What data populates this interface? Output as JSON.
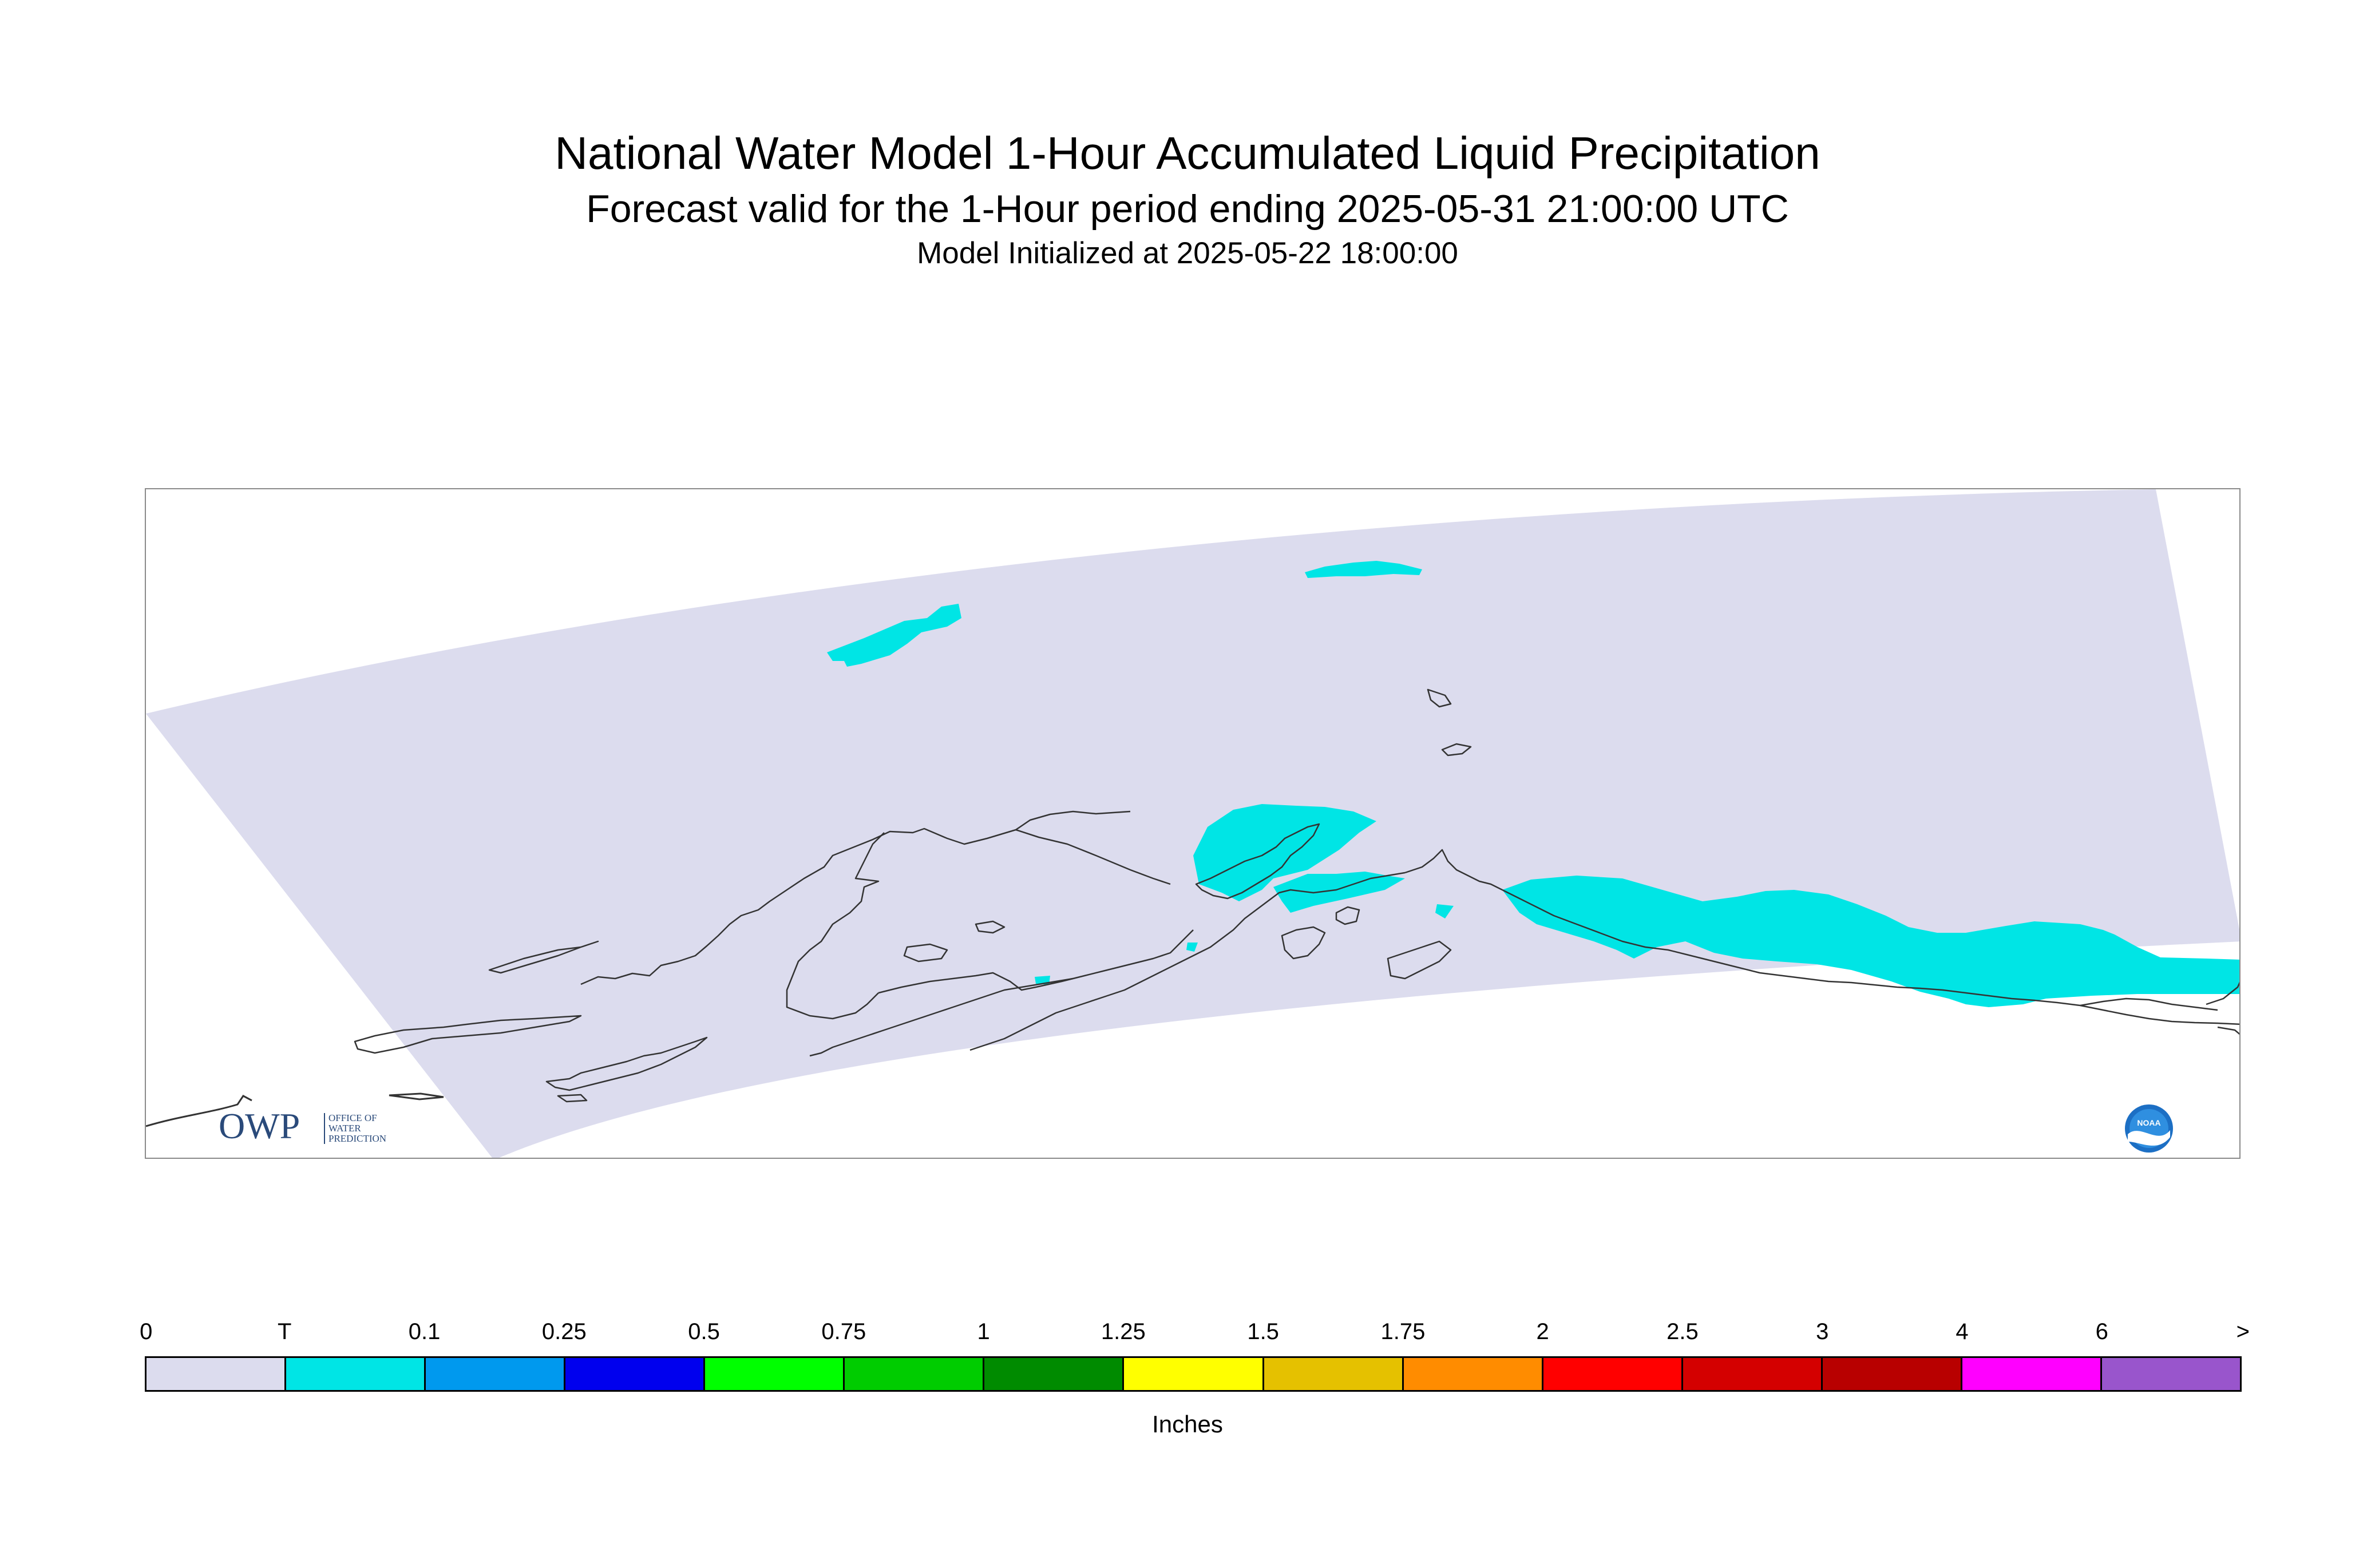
{
  "header": {
    "title": "National Water Model 1-Hour Accumulated Liquid Precipitation",
    "subtitle": "Forecast valid for the 1-Hour period ending 2025-05-31 21:00:00 UTC",
    "init": "Model Initialized at 2025-05-22 18:00:00"
  },
  "map": {
    "domain_fill": "#dcdcee",
    "coastline_color": "#333333",
    "precip_color": "#00e5e5",
    "region": "Alaska"
  },
  "logos": {
    "owp_mark": "OWP",
    "owp_line1": "OFFICE OF",
    "owp_line2": "WATER",
    "owp_line3": "PREDICTION",
    "noaa_mark": "NOAA"
  },
  "legend": {
    "ticks": [
      "0",
      "T",
      "0.1",
      "0.25",
      "0.5",
      "0.75",
      "1",
      "1.25",
      "1.5",
      "1.75",
      "2",
      "2.5",
      "3",
      "4",
      "6",
      ">"
    ],
    "colors": [
      "#dcdcee",
      "#00e5e5",
      "#0099ee",
      "#0000ee",
      "#00ff00",
      "#00cc00",
      "#008b00",
      "#ffff00",
      "#e5c100",
      "#ff8c00",
      "#ff0000",
      "#d40000",
      "#b80000",
      "#ff00ff",
      "#9955cc"
    ],
    "units": "Inches"
  }
}
